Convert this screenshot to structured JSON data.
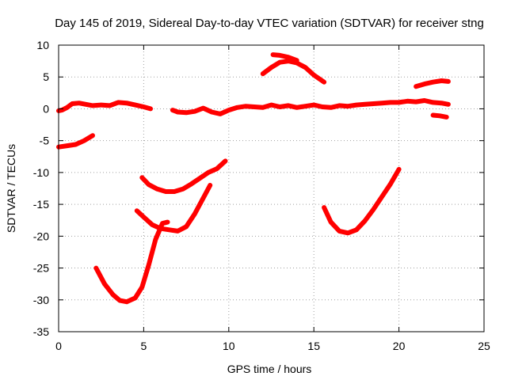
{
  "chart_data": {
    "type": "line",
    "title": "Day 145 of 2019, Sidereal Day-to-day VTEC variation (SDTVAR) for receiver stng",
    "xlabel": "GPS time / hours",
    "ylabel": "SDTVAR / TECUs",
    "xlim": [
      0,
      25
    ],
    "ylim": [
      -35,
      10
    ],
    "xticks": [
      0,
      5,
      10,
      15,
      20,
      25
    ],
    "yticks": [
      -35,
      -30,
      -25,
      -20,
      -15,
      -10,
      -5,
      0,
      5,
      10
    ],
    "grid": true,
    "line_color": "#ff0000",
    "series": [
      {
        "name": "near-zero-1",
        "x": [
          0.0,
          0.2,
          0.5,
          0.8,
          1.2,
          1.6,
          2.0,
          2.5,
          3.0,
          3.5,
          4.0,
          4.5,
          5.0,
          5.4
        ],
        "y": [
          -0.3,
          -0.2,
          0.2,
          0.8,
          0.9,
          0.7,
          0.5,
          0.6,
          0.5,
          1.0,
          0.9,
          0.6,
          0.3,
          0.0
        ]
      },
      {
        "name": "near-zero-2",
        "x": [
          6.7,
          7.0,
          7.5,
          8.0,
          8.5,
          9.0,
          9.5,
          10.0,
          10.5,
          11.0,
          11.5,
          12.0,
          12.5,
          13.0,
          13.5,
          14.0,
          14.5,
          15.0,
          15.5,
          16.0,
          16.5,
          17.0,
          17.5,
          18.0,
          18.5,
          19.0,
          19.5,
          20.0,
          20.5,
          21.0,
          21.5,
          22.0,
          22.5,
          22.9
        ],
        "y": [
          -0.2,
          -0.5,
          -0.6,
          -0.4,
          0.1,
          -0.5,
          -0.8,
          -0.2,
          0.2,
          0.4,
          0.3,
          0.2,
          0.6,
          0.3,
          0.5,
          0.2,
          0.4,
          0.6,
          0.3,
          0.2,
          0.5,
          0.4,
          0.6,
          0.7,
          0.8,
          0.9,
          1.0,
          1.0,
          1.2,
          1.1,
          1.3,
          1.0,
          0.9,
          0.7
        ]
      },
      {
        "name": "neg-6",
        "x": [
          0.0,
          0.5,
          1.0,
          1.5,
          2.0
        ],
        "y": [
          -6.0,
          -5.8,
          -5.6,
          -5.0,
          -4.2
        ]
      },
      {
        "name": "pos-7",
        "x": [
          12.0,
          12.5,
          13.0,
          13.5,
          14.0,
          14.5,
          15.0,
          15.6
        ],
        "y": [
          5.5,
          6.5,
          7.3,
          7.5,
          7.2,
          6.5,
          5.3,
          4.2
        ]
      },
      {
        "name": "pos-8-top",
        "x": [
          12.6,
          13.0,
          13.5,
          14.0
        ],
        "y": [
          8.5,
          8.4,
          8.1,
          7.6
        ]
      },
      {
        "name": "pos-4",
        "x": [
          21.0,
          21.5,
          22.0,
          22.5,
          22.9
        ],
        "y": [
          3.5,
          3.9,
          4.2,
          4.4,
          4.3
        ]
      },
      {
        "name": "neg-1",
        "x": [
          22.0,
          22.4,
          22.8
        ],
        "y": [
          -1.0,
          -1.1,
          -1.3
        ]
      },
      {
        "name": "dip-30",
        "x": [
          2.2,
          2.7,
          3.2,
          3.6,
          4.0,
          4.5,
          4.9,
          5.3,
          5.7,
          6.1,
          6.4
        ],
        "y": [
          -25.0,
          -27.5,
          -29.2,
          -30.1,
          -30.3,
          -29.7,
          -28.0,
          -24.5,
          -20.5,
          -18.0,
          -17.8
        ]
      },
      {
        "name": "dip-19",
        "x": [
          4.6,
          5.0,
          5.5,
          6.0,
          6.5,
          7.0,
          7.5,
          8.0,
          8.5,
          8.9
        ],
        "y": [
          -16.0,
          -17.0,
          -18.2,
          -18.8,
          -19.0,
          -19.2,
          -18.5,
          -16.5,
          -14.0,
          -12.0
        ]
      },
      {
        "name": "dip-13",
        "x": [
          4.9,
          5.3,
          5.8,
          6.3,
          6.8,
          7.3,
          7.8,
          8.3,
          8.8,
          9.3,
          9.8
        ],
        "y": [
          -10.8,
          -11.9,
          -12.6,
          -13.0,
          -13.0,
          -12.6,
          -11.8,
          -10.9,
          -10.0,
          -9.4,
          -8.2
        ]
      },
      {
        "name": "dip-19b",
        "x": [
          15.6,
          16.0,
          16.5,
          17.0,
          17.5,
          18.0,
          18.5,
          19.0,
          19.5,
          20.0
        ],
        "y": [
          -15.5,
          -17.8,
          -19.2,
          -19.5,
          -19.0,
          -17.6,
          -15.8,
          -13.8,
          -11.8,
          -9.5
        ]
      }
    ]
  }
}
